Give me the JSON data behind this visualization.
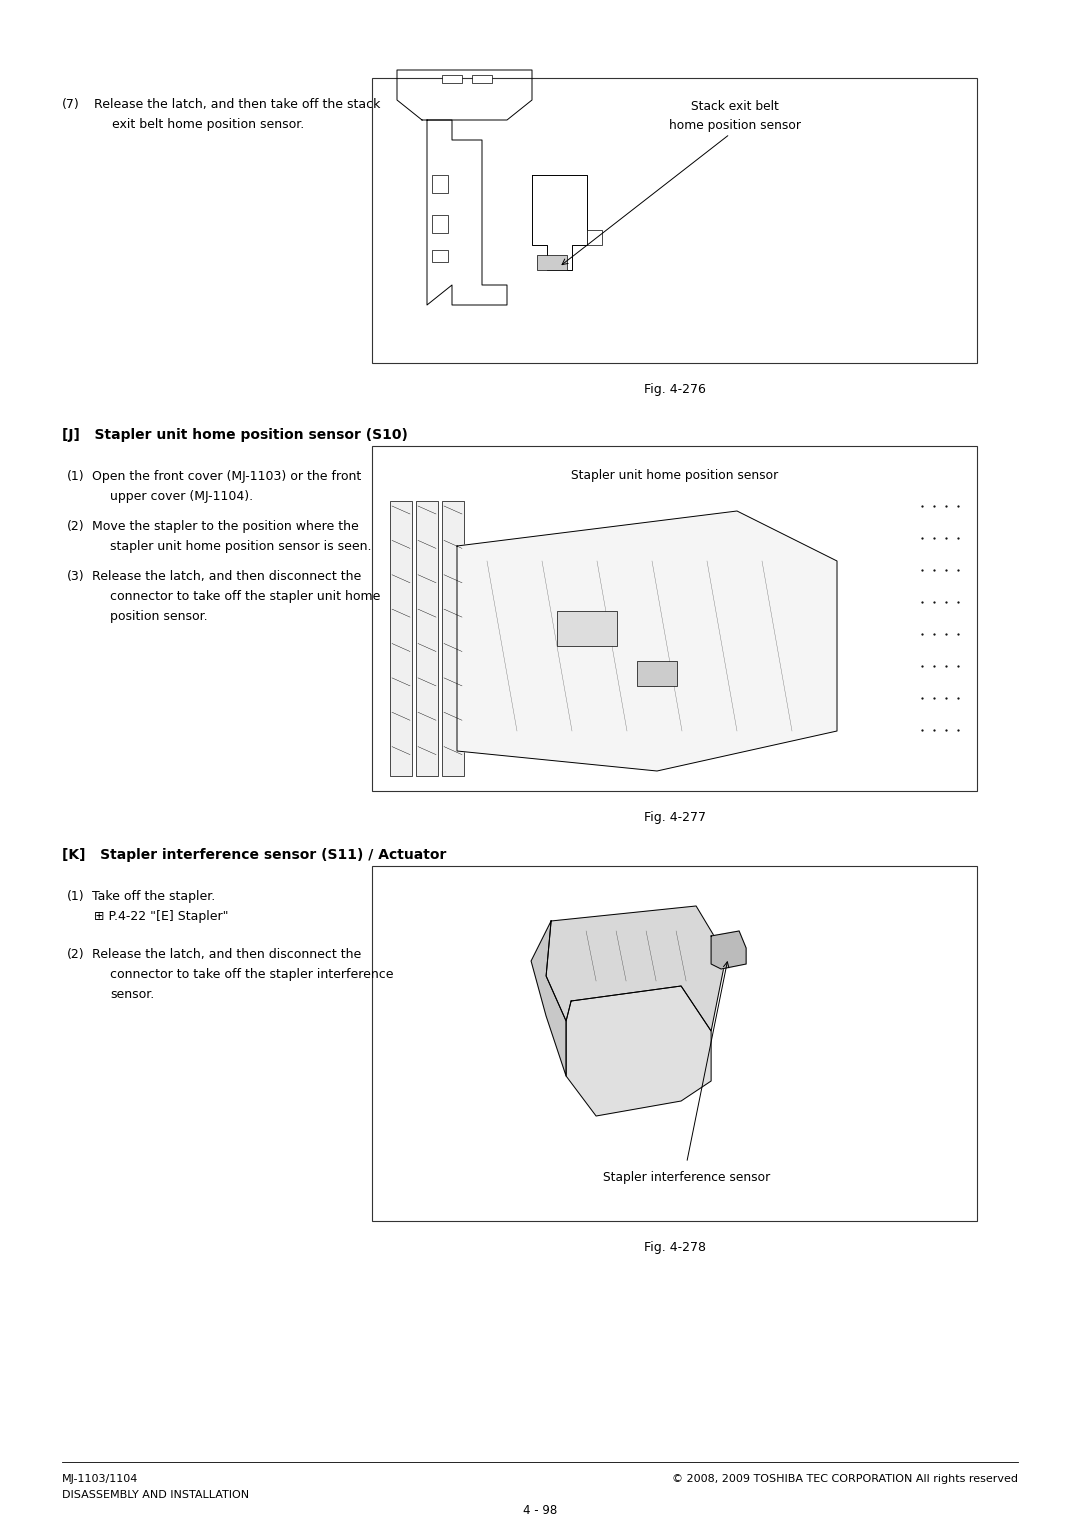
{
  "page_width": 10.8,
  "page_height": 15.27,
  "bg_color": "#ffffff",
  "ml": 0.62,
  "mr": 10.18,
  "section_J_heading": "[J]   Stapler unit home position sensor (S10)",
  "section_K_heading": "[K]   Stapler interference sensor (S11) / Actuator",
  "step7_label": "(7)",
  "step7_text_line1": "Release the latch, and then take off the stack",
  "step7_text_line2": "exit belt home position sensor.",
  "fig276_caption": "Fig. 4-276",
  "fig276_box_label_line1": "Stack exit belt",
  "fig276_box_label_line2": "home position sensor",
  "fig277_caption": "Fig. 4-277",
  "fig277_box_label": "Stapler unit home position sensor",
  "fig278_caption": "Fig. 4-278",
  "fig278_box_label": "Stapler interference sensor",
  "stepJ1_label": "(1)",
  "stepJ1_line1": "Open the front cover (MJ-1103) or the front",
  "stepJ1_line2": "upper cover (MJ-1104).",
  "stepJ2_label": "(2)",
  "stepJ2_line1": "Move the stapler to the position where the",
  "stepJ2_line2": "stapler unit home position sensor is seen.",
  "stepJ3_label": "(3)",
  "stepJ3_line1": "Release the latch, and then disconnect the",
  "stepJ3_line2": "connector to take off the stapler unit home",
  "stepJ3_line3": "position sensor.",
  "stepK1_label": "(1)",
  "stepK1_line1": "Take off the stapler.",
  "stepK1_line2": "⊞ P.4-22 \"[E] Stapler\"",
  "stepK2_label": "(2)",
  "stepK2_line1": "Release the latch, and then disconnect the",
  "stepK2_line2": "connector to take off the stapler interference",
  "stepK2_line3": "sensor.",
  "footer_left_line1": "MJ-1103/1104",
  "footer_left_line2": "DISASSEMBLY AND INSTALLATION",
  "footer_center": "4 - 98",
  "footer_right": "© 2008, 2009 TOSHIBA TEC CORPORATION All rights reserved",
  "body_fs": 9.0,
  "heading_fs": 10.0,
  "caption_fs": 9.0,
  "footer_fs": 8.0,
  "diag_label_fs": 8.8
}
